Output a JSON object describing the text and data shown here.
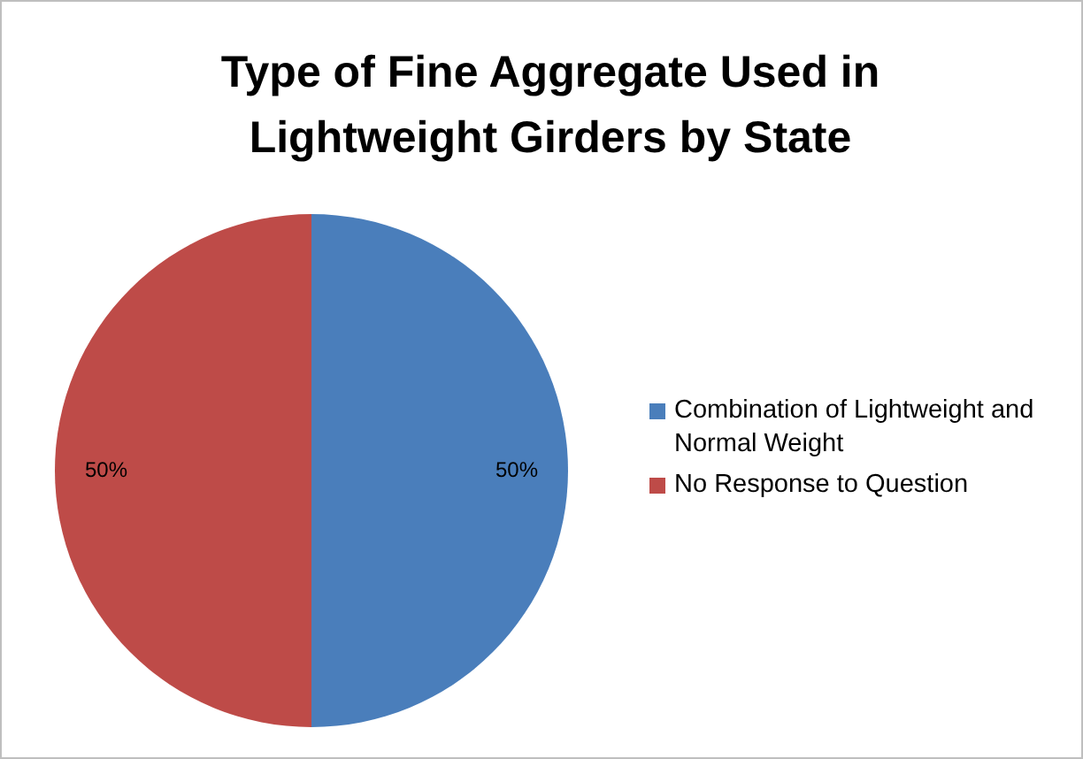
{
  "chart_data": {
    "type": "pie",
    "title": "Type of Fine Aggregate Used in Lightweight Girders by State",
    "categories": [
      "Combination of Lightweight and Normal Weight",
      "No Response to Question"
    ],
    "values": [
      50,
      50
    ],
    "colors": [
      "#4a7ebb",
      "#be4b48"
    ],
    "value_labels": [
      "50%",
      "50%"
    ],
    "legend": "right"
  }
}
